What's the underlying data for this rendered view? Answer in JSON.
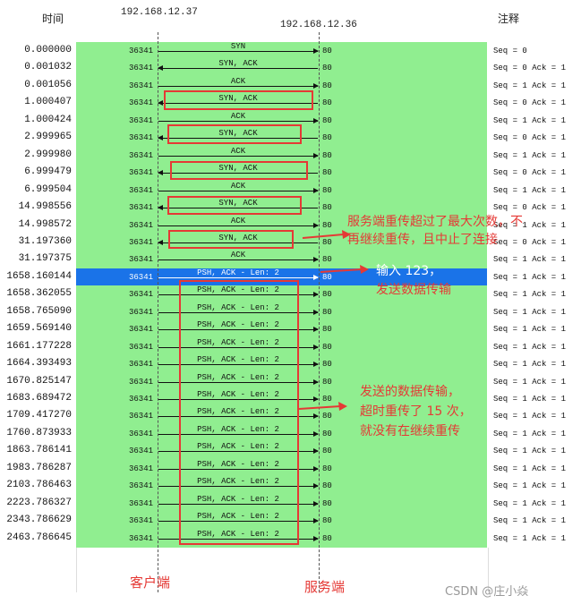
{
  "header": {
    "time_label": "时间",
    "notes_label": "注释"
  },
  "hosts": {
    "client_ip": "192.168.12.37",
    "server_ip": "192.168.12.36"
  },
  "rows": [
    {
      "time": "0.000000",
      "src": "36341",
      "dst": "80",
      "label": "SYN",
      "dir": "r",
      "note": "Seq = 0"
    },
    {
      "time": "0.001032",
      "src": "36341",
      "dst": "80",
      "label": "SYN, ACK",
      "dir": "l",
      "note": "Seq = 0 Ack = 1"
    },
    {
      "time": "0.001056",
      "src": "36341",
      "dst": "80",
      "label": "ACK",
      "dir": "r",
      "note": "Seq = 1 Ack = 1"
    },
    {
      "time": "1.000407",
      "src": "36341",
      "dst": "80",
      "label": "SYN, ACK",
      "dir": "l",
      "note": "Seq = 0 Ack = 1"
    },
    {
      "time": "1.000424",
      "src": "36341",
      "dst": "80",
      "label": "ACK",
      "dir": "r",
      "note": "Seq = 1 Ack = 1"
    },
    {
      "time": "2.999965",
      "src": "36341",
      "dst": "80",
      "label": "SYN, ACK",
      "dir": "l",
      "note": "Seq = 0 Ack = 1"
    },
    {
      "time": "2.999980",
      "src": "36341",
      "dst": "80",
      "label": "ACK",
      "dir": "r",
      "note": "Seq = 1 Ack = 1"
    },
    {
      "time": "6.999479",
      "src": "36341",
      "dst": "80",
      "label": "SYN, ACK",
      "dir": "l",
      "note": "Seq = 0 Ack = 1"
    },
    {
      "time": "6.999504",
      "src": "36341",
      "dst": "80",
      "label": "ACK",
      "dir": "r",
      "note": "Seq = 1 Ack = 1"
    },
    {
      "time": "14.998556",
      "src": "36341",
      "dst": "80",
      "label": "SYN, ACK",
      "dir": "l",
      "note": "Seq = 0 Ack = 1"
    },
    {
      "time": "14.998572",
      "src": "36341",
      "dst": "80",
      "label": "ACK",
      "dir": "r",
      "note": "Seq = 1 Ack = 1"
    },
    {
      "time": "31.197360",
      "src": "36341",
      "dst": "80",
      "label": "SYN, ACK",
      "dir": "l",
      "note": "Seq = 0 Ack = 1"
    },
    {
      "time": "31.197375",
      "src": "36341",
      "dst": "80",
      "label": "ACK",
      "dir": "r",
      "note": "Seq = 1 Ack = 1"
    },
    {
      "time": "1658.160144",
      "src": "36341",
      "dst": "80",
      "label": "PSH, ACK - Len: 2",
      "dir": "r",
      "note": "Seq = 1 Ack = 1",
      "selected": true
    },
    {
      "time": "1658.362055",
      "src": "36341",
      "dst": "80",
      "label": "PSH, ACK - Len: 2",
      "dir": "r",
      "note": "Seq = 1 Ack = 1"
    },
    {
      "time": "1658.765090",
      "src": "36341",
      "dst": "80",
      "label": "PSH, ACK - Len: 2",
      "dir": "r",
      "note": "Seq = 1 Ack = 1"
    },
    {
      "time": "1659.569140",
      "src": "36341",
      "dst": "80",
      "label": "PSH, ACK - Len: 2",
      "dir": "r",
      "note": "Seq = 1 Ack = 1"
    },
    {
      "time": "1661.177228",
      "src": "36341",
      "dst": "80",
      "label": "PSH, ACK - Len: 2",
      "dir": "r",
      "note": "Seq = 1 Ack = 1"
    },
    {
      "time": "1664.393493",
      "src": "36341",
      "dst": "80",
      "label": "PSH, ACK - Len: 2",
      "dir": "r",
      "note": "Seq = 1 Ack = 1"
    },
    {
      "time": "1670.825147",
      "src": "36341",
      "dst": "80",
      "label": "PSH, ACK - Len: 2",
      "dir": "r",
      "note": "Seq = 1 Ack = 1"
    },
    {
      "time": "1683.689472",
      "src": "36341",
      "dst": "80",
      "label": "PSH, ACK - Len: 2",
      "dir": "r",
      "note": "Seq = 1 Ack = 1"
    },
    {
      "time": "1709.417270",
      "src": "36341",
      "dst": "80",
      "label": "PSH, ACK - Len: 2",
      "dir": "r",
      "note": "Seq = 1 Ack = 1"
    },
    {
      "time": "1760.873933",
      "src": "36341",
      "dst": "80",
      "label": "PSH, ACK - Len: 2",
      "dir": "r",
      "note": "Seq = 1 Ack = 1"
    },
    {
      "time": "1863.786141",
      "src": "36341",
      "dst": "80",
      "label": "PSH, ACK - Len: 2",
      "dir": "r",
      "note": "Seq = 1 Ack = 1"
    },
    {
      "time": "1983.786287",
      "src": "36341",
      "dst": "80",
      "label": "PSH, ACK - Len: 2",
      "dir": "r",
      "note": "Seq = 1 Ack = 1"
    },
    {
      "time": "2103.786463",
      "src": "36341",
      "dst": "80",
      "label": "PSH, ACK - Len: 2",
      "dir": "r",
      "note": "Seq = 1 Ack = 1"
    },
    {
      "time": "2223.786327",
      "src": "36341",
      "dst": "80",
      "label": "PSH, ACK - Len: 2",
      "dir": "r",
      "note": "Seq = 1 Ack = 1"
    },
    {
      "time": "2343.786629",
      "src": "36341",
      "dst": "80",
      "label": "PSH, ACK - Len: 2",
      "dir": "r",
      "note": "Seq = 1 Ack = 1"
    },
    {
      "time": "2463.786645",
      "src": "36341",
      "dst": "80",
      "label": "PSH, ACK - Len: 2",
      "dir": "r",
      "note": "Seq = 1 Ack = 1"
    }
  ],
  "annotations": {
    "server_retx_line1": "服务端重传超过了最大次数，不",
    "server_retx_line2": "再继续重传，且中止了连接",
    "input_line1": "输入 123，",
    "input_line2": "发送数据传输",
    "client_retx_line1": "发送的数据传输，",
    "client_retx_line2": "超时重传了 15 次，",
    "client_retx_line3": "就没有在继续重传"
  },
  "footer": {
    "client_label": "客户端",
    "server_label": "服务端",
    "watermark": "CSDN @庄小焱"
  },
  "colors": {
    "flow_bg": "#90ee90",
    "selected_row": "#1a73e8",
    "annotation_red": "#e53935"
  }
}
